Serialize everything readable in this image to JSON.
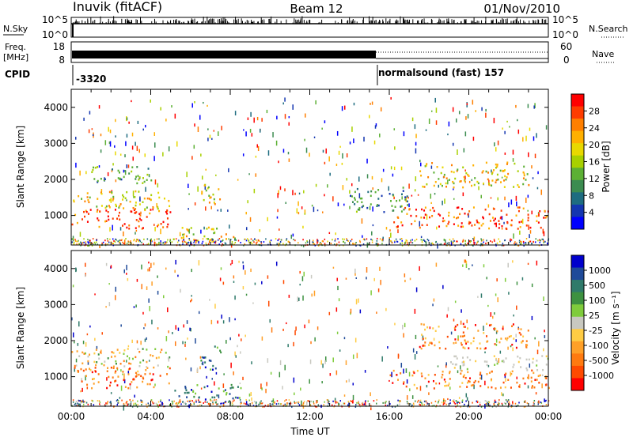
{
  "header": {
    "station": "Inuvik (fitACF)",
    "beam": "Beam 12",
    "date": "01/Nov/2010"
  },
  "strips": {
    "nsky_label": "N.Sky",
    "nsky_ticks": [
      "10^5",
      "10^0"
    ],
    "nsearch_label": "N.Search",
    "nsearch_ticks": [
      "10^5",
      "10^0"
    ],
    "freq_label_1": "Freq.",
    "freq_label_2": "[MHz]",
    "freq_ticks": [
      "18",
      "8"
    ],
    "nave_label": "Nave",
    "nave_ticks": [
      "60",
      "0"
    ],
    "cpid_label": "CPID",
    "cpid_first": "-3320",
    "cpid_second": "normalsound (fast) 157",
    "cpid_change_hour": 15.4
  },
  "chart_data": [
    {
      "type": "heatmap",
      "panel": "power",
      "ylabel": "Slant Range [km]",
      "yticks": [
        "4000",
        "3000",
        "2000",
        "1000"
      ],
      "ylim": [
        180,
        4500
      ],
      "xlim": [
        0,
        24
      ],
      "colorbar_label": "Power [dB]",
      "colorbar_ticks": [
        "28",
        "24",
        "20",
        "16",
        "12",
        "8",
        "4"
      ],
      "colors": [
        "#ff0000",
        "#ff3c00",
        "#ff7f00",
        "#ffb000",
        "#e8d800",
        "#a8d000",
        "#5cb034",
        "#3c8c50",
        "#1e6c80",
        "#1436b0",
        "#0000ff"
      ],
      "regions": [
        {
          "start": 0.0,
          "end": 5.0,
          "range_min": 650,
          "range_max": 1200,
          "level": "high"
        },
        {
          "start": 0.0,
          "end": 5.0,
          "range_min": 1200,
          "range_max": 1700,
          "level": "medium"
        },
        {
          "start": 1.0,
          "end": 4.0,
          "range_min": 1900,
          "range_max": 2400,
          "level": "low"
        },
        {
          "start": 5.0,
          "end": 8.5,
          "range_min": 300,
          "range_max": 700,
          "level": "medium"
        },
        {
          "start": 6.5,
          "end": 7.5,
          "range_min": 1200,
          "range_max": 1900,
          "level": "medium"
        },
        {
          "start": 14.0,
          "end": 17.0,
          "range_min": 1100,
          "range_max": 1800,
          "level": "low"
        },
        {
          "start": 16.0,
          "end": 24.0,
          "range_min": 650,
          "range_max": 1250,
          "level": "high"
        },
        {
          "start": 17.5,
          "end": 23.0,
          "range_min": 1800,
          "range_max": 2500,
          "level": "medium"
        }
      ]
    },
    {
      "type": "heatmap",
      "panel": "velocity",
      "ylabel": "Slant Range [km]",
      "yticks": [
        "4000",
        "3000",
        "2000",
        "1000"
      ],
      "ylim": [
        180,
        4500
      ],
      "xlim": [
        0,
        24
      ],
      "xticks": [
        "00:00",
        "04:00",
        "08:00",
        "12:00",
        "16:00",
        "20:00",
        "00:00"
      ],
      "xlabel": "Time UT",
      "colorbar_label": "Velocity [m s⁻¹]",
      "colorbar_ticks": [
        "1000",
        "500",
        "100",
        "25",
        "-25",
        "-100",
        "-500",
        "-1000"
      ],
      "colors": [
        "#0000cc",
        "#1f4a99",
        "#2f7a6a",
        "#3d9140",
        "#7fcc3c",
        "#c8c8c0",
        "#ffcc44",
        "#ffa028",
        "#ff7a10",
        "#ff4a00",
        "#ff0000"
      ],
      "regions": [
        {
          "start": 0.0,
          "end": 5.0,
          "range_min": 700,
          "range_max": 1300,
          "level": "negative"
        },
        {
          "start": 0.0,
          "end": 5.0,
          "range_min": 1300,
          "range_max": 1800,
          "level": "mixed"
        },
        {
          "start": 5.0,
          "end": 8.5,
          "range_min": 300,
          "range_max": 800,
          "level": "positive"
        },
        {
          "start": 6.5,
          "end": 7.5,
          "range_min": 1200,
          "range_max": 1900,
          "level": "positive"
        },
        {
          "start": 16.0,
          "end": 24.0,
          "range_min": 700,
          "range_max": 1200,
          "level": "negative"
        },
        {
          "start": 19.0,
          "end": 24.0,
          "range_min": 1200,
          "range_max": 1600,
          "level": "zero"
        },
        {
          "start": 17.5,
          "end": 23.0,
          "range_min": 1800,
          "range_max": 2500,
          "level": "negative"
        }
      ]
    }
  ]
}
